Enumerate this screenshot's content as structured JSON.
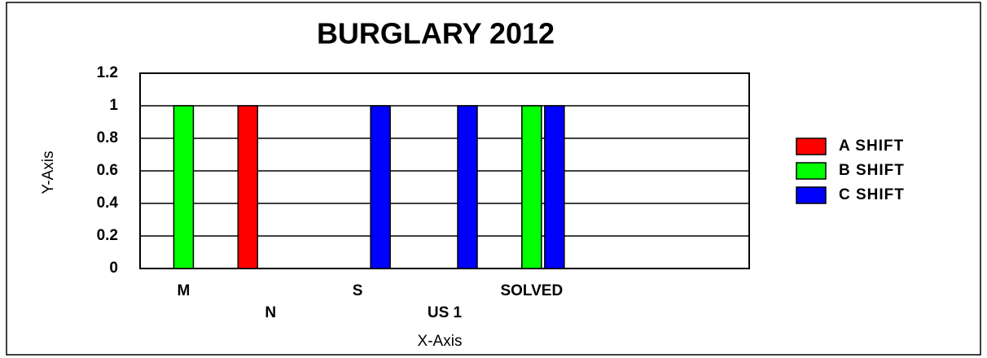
{
  "chart_data": {
    "type": "bar",
    "title": "BURGLARY 2012",
    "x_label": "X-Axis",
    "y_label": "Y-Axis",
    "categories": [
      "M",
      "N",
      "S",
      "US 1",
      "SOLVED",
      null,
      null
    ],
    "series": [
      {
        "name": "A SHIFT",
        "color": "#ff0000",
        "values": [
          0,
          1,
          0,
          0,
          0,
          0,
          0
        ]
      },
      {
        "name": "B SHIFT",
        "color": "#00ff00",
        "values": [
          1,
          0,
          0,
          0,
          1,
          0,
          0
        ]
      },
      {
        "name": "C SHIFT",
        "color": "#0000ff",
        "values": [
          0,
          0,
          1,
          1,
          1,
          0,
          0
        ]
      }
    ],
    "ylim": [
      0,
      1.2
    ],
    "yticks": [
      0,
      0.2,
      0.4,
      0.6,
      0.8,
      1,
      1.2
    ],
    "grid": true,
    "legend": "right"
  }
}
